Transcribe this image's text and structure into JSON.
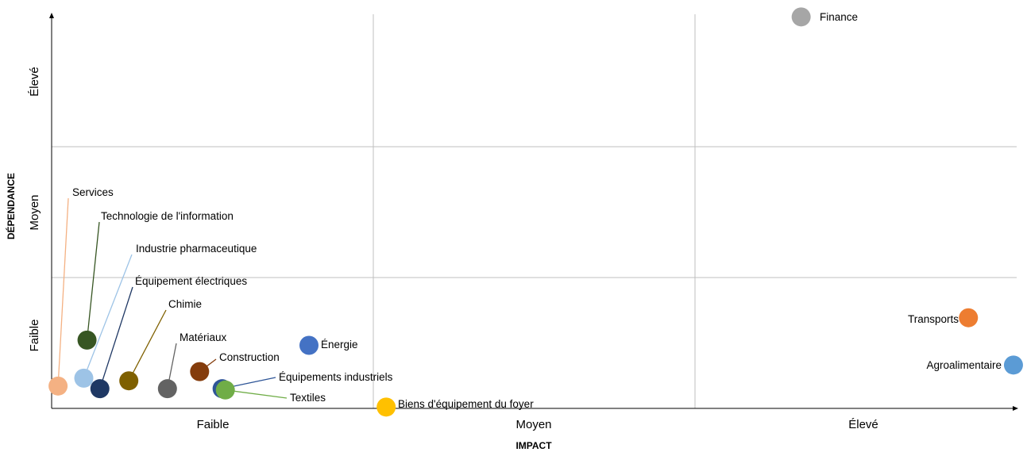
{
  "chart_data": {
    "type": "scatter",
    "title": "",
    "xlabel": "IMPACT",
    "ylabel": "DÉPENDANCE",
    "x_ticks": [
      "Faible",
      "Moyen",
      "Élevé"
    ],
    "y_ticks": [
      "Faible",
      "Moyen",
      "Élevé"
    ],
    "xlim": [
      0,
      3
    ],
    "ylim": [
      0,
      3
    ],
    "grid": true,
    "points": [
      {
        "name": "Finance",
        "x": 2.33,
        "y": 2.98,
        "color": "#a6a6a6"
      },
      {
        "name": "Transports",
        "x": 2.85,
        "y": 0.69,
        "color": "#ed7d31"
      },
      {
        "name": "Agroalimentaire",
        "x": 2.99,
        "y": 0.33,
        "color": "#5b9bd5"
      },
      {
        "name": "Services",
        "x": 0.02,
        "y": 0.17,
        "color": "#f4b183"
      },
      {
        "name": "Technologie de l'information",
        "x": 0.11,
        "y": 0.52,
        "color": "#375623"
      },
      {
        "name": "Industrie pharmaceutique",
        "x": 0.1,
        "y": 0.23,
        "color": "#9dc3e6"
      },
      {
        "name": "Équipement électriques",
        "x": 0.15,
        "y": 0.15,
        "color": "#1f3864"
      },
      {
        "name": "Chimie",
        "x": 0.24,
        "y": 0.21,
        "color": "#7f6000"
      },
      {
        "name": "Matériaux",
        "x": 0.36,
        "y": 0.15,
        "color": "#636363"
      },
      {
        "name": "Construction",
        "x": 0.46,
        "y": 0.28,
        "color": "#843c0c"
      },
      {
        "name": "Énergie",
        "x": 0.8,
        "y": 0.48,
        "color": "#4472c4"
      },
      {
        "name": "Équipements industriels",
        "x": 0.53,
        "y": 0.15,
        "color": "#2e5597"
      },
      {
        "name": "Textiles",
        "x": 0.54,
        "y": 0.14,
        "color": "#70ad47"
      },
      {
        "name": "Biens d'équipement du foyer",
        "x": 1.04,
        "y": 0.01,
        "color": "#ffc000"
      }
    ]
  }
}
